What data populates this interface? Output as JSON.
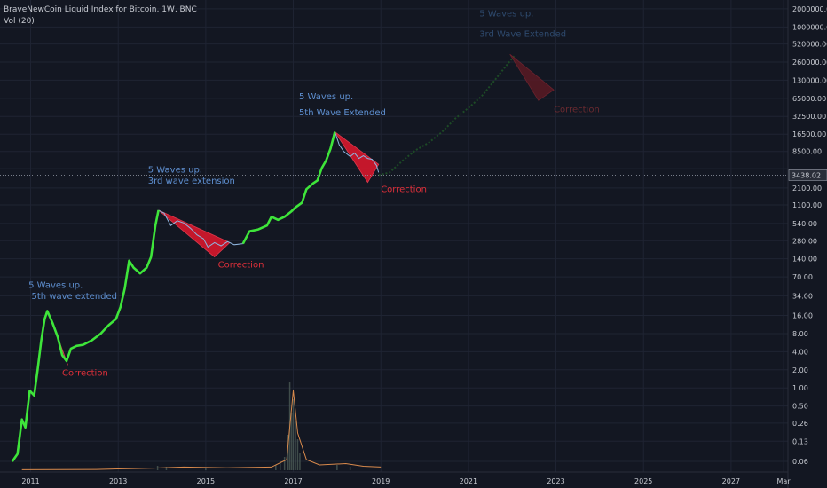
{
  "header": {
    "title": "BraveNewCoin Liquid Index for Bitcoin, 1W, BNC",
    "indicator": "Vol (20)"
  },
  "current_price": "3438.02",
  "colors": {
    "background": "#131722",
    "grid": "#1f2433",
    "wave_line": "#3ee53a",
    "price_line": "#8fb6e0",
    "correction_fill": "#e3182d",
    "annotation_blue": "#5e8fd0",
    "annotation_red": "#e0303a",
    "volume_line": "#d98a4c"
  },
  "chart_data": {
    "type": "line",
    "y_scale": "log",
    "ylim": [
      0.04,
      2800000
    ],
    "xlim": [
      2010.3,
      2028.3
    ],
    "y_ticks": [
      "2000000.00",
      "1000000.00",
      "520000.00",
      "260000.00",
      "130000.00",
      "65000.00",
      "32500.00",
      "16500.00",
      "8500.00",
      "4400.00",
      "2100.00",
      "1100.00",
      "540.00",
      "280.00",
      "140.00",
      "70.00",
      "34.00",
      "16.00",
      "8.00",
      "4.00",
      "2.00",
      "1.00",
      "0.50",
      "0.26",
      "0.13",
      "0.06"
    ],
    "x_ticks": [
      {
        "label": "2011",
        "x": 2011
      },
      {
        "label": "2013",
        "x": 2013
      },
      {
        "label": "2015",
        "x": 2015
      },
      {
        "label": "2017",
        "x": 2017
      },
      {
        "label": "2019",
        "x": 2019
      },
      {
        "label": "2021",
        "x": 2021
      },
      {
        "label": "2023",
        "x": 2023
      },
      {
        "label": "2025",
        "x": 2025
      },
      {
        "label": "2027",
        "x": 2027
      },
      {
        "label": "Mar",
        "x": 2028.2
      }
    ],
    "wave_path": [
      [
        2010.58,
        0.06
      ],
      [
        2010.7,
        0.08
      ],
      [
        2010.8,
        0.3
      ],
      [
        2010.88,
        0.22
      ],
      [
        2010.98,
        0.9
      ],
      [
        2011.08,
        0.75
      ],
      [
        2011.16,
        2.0
      ],
      [
        2011.24,
        6
      ],
      [
        2011.32,
        14
      ],
      [
        2011.38,
        19
      ],
      [
        2011.5,
        12
      ],
      [
        2011.62,
        7
      ],
      [
        2011.72,
        3.5
      ],
      [
        2011.82,
        2.8
      ],
      [
        2011.92,
        4.5
      ],
      [
        2012.05,
        5.0
      ],
      [
        2012.2,
        5.2
      ],
      [
        2012.4,
        6.2
      ],
      [
        2012.6,
        8
      ],
      [
        2012.78,
        11
      ],
      [
        2012.95,
        14
      ],
      [
        2013.05,
        22
      ],
      [
        2013.15,
        45
      ],
      [
        2013.25,
        130
      ],
      [
        2013.35,
        100
      ],
      [
        2013.5,
        80
      ],
      [
        2013.65,
        100
      ],
      [
        2013.75,
        150
      ],
      [
        2013.85,
        500
      ],
      [
        2013.92,
        900
      ]
    ],
    "wave_path2": [
      [
        2015.85,
        250
      ],
      [
        2016.0,
        400
      ],
      [
        2016.2,
        430
      ],
      [
        2016.4,
        500
      ],
      [
        2016.5,
        700
      ],
      [
        2016.65,
        620
      ],
      [
        2016.8,
        700
      ],
      [
        2016.95,
        850
      ],
      [
        2017.05,
        1000
      ],
      [
        2017.2,
        1200
      ],
      [
        2017.3,
        2000
      ],
      [
        2017.45,
        2500
      ],
      [
        2017.55,
        2800
      ],
      [
        2017.65,
        4500
      ],
      [
        2017.75,
        6000
      ],
      [
        2017.85,
        9500
      ],
      [
        2017.95,
        18000
      ]
    ],
    "price_path": [
      [
        2013.92,
        900
      ],
      [
        2014.05,
        800
      ],
      [
        2014.2,
        500
      ],
      [
        2014.35,
        600
      ],
      [
        2014.5,
        550
      ],
      [
        2014.65,
        450
      ],
      [
        2014.8,
        350
      ],
      [
        2014.95,
        300
      ],
      [
        2015.05,
        220
      ],
      [
        2015.2,
        260
      ],
      [
        2015.35,
        230
      ],
      [
        2015.5,
        270
      ],
      [
        2015.65,
        240
      ],
      [
        2015.85,
        250
      ],
      [
        2017.95,
        18000
      ],
      [
        2018.05,
        11000
      ],
      [
        2018.15,
        8500
      ],
      [
        2018.3,
        7000
      ],
      [
        2018.4,
        8000
      ],
      [
        2018.5,
        6500
      ],
      [
        2018.6,
        7200
      ],
      [
        2018.7,
        6500
      ],
      [
        2018.8,
        6300
      ],
      [
        2018.9,
        5000
      ],
      [
        2018.95,
        3800
      ]
    ],
    "future_path": [
      [
        2018.95,
        3438
      ],
      [
        2019.2,
        3800
      ],
      [
        2019.5,
        6000
      ],
      [
        2019.8,
        9000
      ],
      [
        2020.1,
        12000
      ],
      [
        2020.4,
        18000
      ],
      [
        2020.7,
        30000
      ],
      [
        2021.0,
        45000
      ],
      [
        2021.3,
        70000
      ],
      [
        2021.6,
        130000
      ],
      [
        2021.85,
        220000
      ],
      [
        2022.05,
        330000
      ]
    ],
    "corrections": [
      {
        "label": "Correction",
        "poly": [
          [
            2011.38,
            19
          ],
          [
            2011.85,
            2.4
          ],
          [
            2011.62,
            7
          ]
        ],
        "text_at": [
          2011.72,
          1.6
        ]
      },
      {
        "label": "Correction",
        "poly": [
          [
            2013.92,
            900
          ],
          [
            2015.55,
            260
          ],
          [
            2015.2,
            150
          ]
        ],
        "text_at": [
          2015.28,
          100
        ]
      },
      {
        "label": "Correction",
        "poly": [
          [
            2017.95,
            18000
          ],
          [
            2018.95,
            5200
          ],
          [
            2018.7,
            2600
          ]
        ],
        "text_at": [
          2019.0,
          1800
        ]
      },
      {
        "label": "Correction",
        "poly": [
          [
            2021.95,
            350000
          ],
          [
            2022.95,
            90000
          ],
          [
            2022.6,
            60000
          ]
        ],
        "text_at": [
          2022.95,
          38000
        ]
      }
    ],
    "annotations": [
      {
        "text": "5 Waves up.",
        "at": [
          2010.95,
          46
        ],
        "color": "annotation_blue"
      },
      {
        "text": "5th wave extended",
        "at": [
          2011.02,
          30
        ],
        "color": "annotation_blue"
      },
      {
        "text": "5 Waves up.",
        "at": [
          2013.68,
          3800
        ],
        "color": "annotation_blue"
      },
      {
        "text": "3rd wave extension",
        "at": [
          2013.68,
          2500
        ],
        "color": "annotation_blue"
      },
      {
        "text": "5 Waves up.",
        "at": [
          2017.13,
          62000
        ],
        "color": "annotation_blue"
      },
      {
        "text": "5th Wave Extended",
        "at": [
          2017.13,
          34000
        ],
        "color": "annotation_blue"
      },
      {
        "text": "5 Waves up.",
        "at": [
          2021.25,
          1500000
        ],
        "color": "annotation_dim"
      },
      {
        "text": "3rd Wave Extended",
        "at": [
          2021.25,
          680000
        ],
        "color": "annotation_dim"
      }
    ],
    "volume_line": [
      [
        2010.8,
        0.2
      ],
      [
        2012.5,
        0.3
      ],
      [
        2013.8,
        0.8
      ],
      [
        2014.5,
        1.2
      ],
      [
        2015.5,
        0.9
      ],
      [
        2016.5,
        1.2
      ],
      [
        2016.85,
        4
      ],
      [
        2017.0,
        30
      ],
      [
        2017.1,
        14
      ],
      [
        2017.3,
        4
      ],
      [
        2017.6,
        2
      ],
      [
        2018.2,
        2.5
      ],
      [
        2018.6,
        1.5
      ],
      [
        2019.0,
        1.2
      ]
    ],
    "volume_spikes": [
      [
        2016.88,
        40
      ],
      [
        2016.92,
        100
      ],
      [
        2016.96,
        65
      ],
      [
        2017.0,
        80
      ],
      [
        2017.05,
        55
      ],
      [
        2017.1,
        35
      ],
      [
        2017.15,
        20
      ],
      [
        2016.8,
        15
      ],
      [
        2016.7,
        10
      ],
      [
        2016.6,
        6
      ],
      [
        2013.9,
        5
      ],
      [
        2014.1,
        4
      ],
      [
        2015.0,
        3
      ],
      [
        2018.0,
        6
      ],
      [
        2018.3,
        4
      ]
    ]
  }
}
